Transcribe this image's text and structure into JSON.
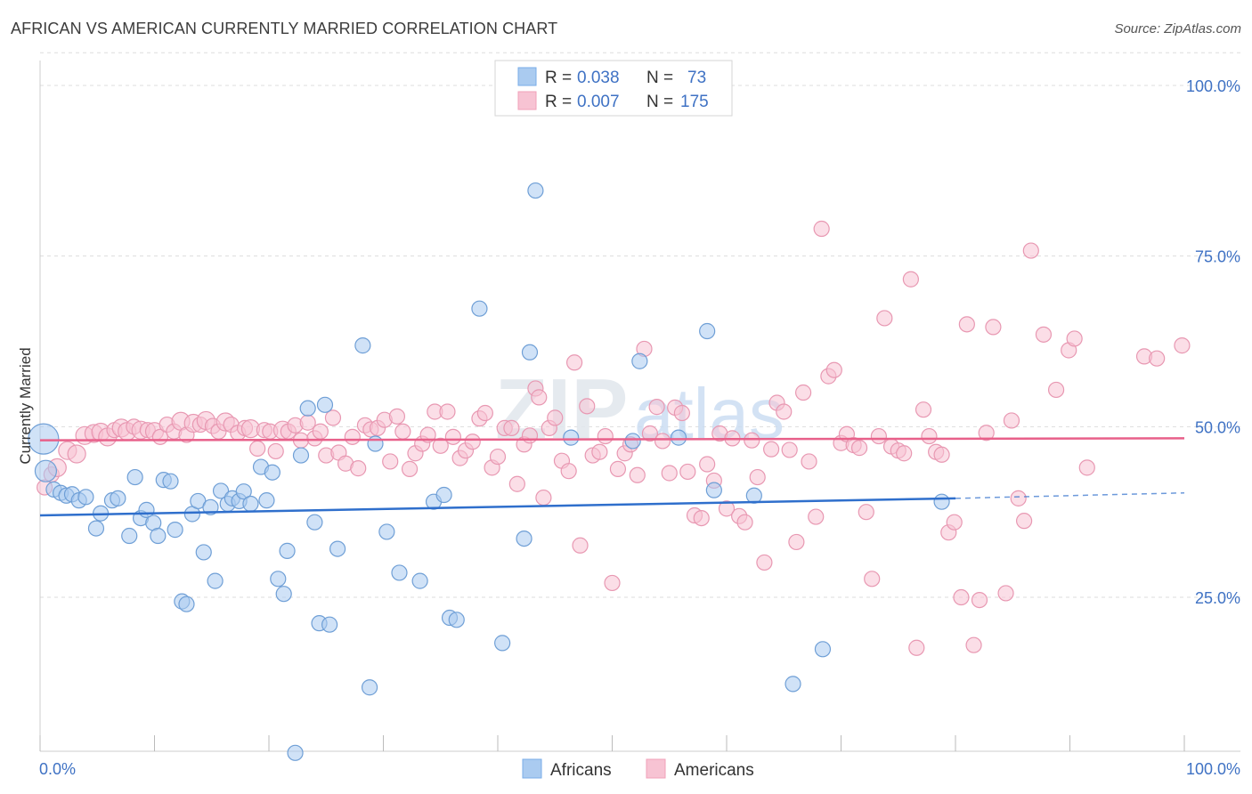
{
  "title": "AFRICAN VS AMERICAN CURRENTLY MARRIED CORRELATION CHART",
  "source": "Source: ZipAtlas.com",
  "watermark": {
    "zip": "ZIP",
    "atlas": "atlas"
  },
  "legend_top": [
    {
      "r_label": "R =",
      "r_value": "0.038",
      "n_label": "N =",
      "n_value": "73",
      "color": "#7aaee8"
    },
    {
      "r_label": "R =",
      "r_value": "0.007",
      "n_label": "N =",
      "n_value": "175",
      "color": "#f2a0ba"
    }
  ],
  "legend_bottom": [
    {
      "label": "Africans",
      "color": "#7aaee8"
    },
    {
      "label": "Americans",
      "color": "#f2a0ba"
    }
  ],
  "colors": {
    "blue_fill": "#aacbf0",
    "blue_stroke": "#6f9fd6",
    "blue_line": "#2f6fcc",
    "pink_fill": "#f7c3d3",
    "pink_stroke": "#e898b2",
    "pink_line": "#e8608a",
    "axis_text": "#3f72c4",
    "grid": "#dddddd"
  },
  "chart_data": {
    "type": "scatter",
    "title": "AFRICAN VS AMERICAN CURRENTLY MARRIED CORRELATION CHART",
    "xlabel": "",
    "ylabel": "Currently Married",
    "xlim": [
      0,
      100
    ],
    "ylim": [
      0,
      105
    ],
    "x_tick_labels": [
      "0.0%",
      "100.0%"
    ],
    "y_ticks": [
      25,
      50,
      75,
      100
    ],
    "y_tick_labels": [
      "25.0%",
      "50.0%",
      "75.0%",
      "100.0%"
    ],
    "grid": true,
    "series": [
      {
        "name": "Africans",
        "R": 0.038,
        "N": 73,
        "trend": {
          "x0": 0,
          "y0": 37.0,
          "x1": 80,
          "y1": 39.5,
          "dashed_to_x": 100,
          "dashed_to_y": 40.3
        },
        "points": [
          [
            0.3,
            48.2,
            5
          ],
          [
            0.5,
            43.5,
            3
          ],
          [
            1.2,
            40.8,
            1
          ],
          [
            1.8,
            40.3,
            1
          ],
          [
            2.3,
            39.9,
            1
          ],
          [
            2.8,
            40.1,
            1
          ],
          [
            3.4,
            39.2,
            1
          ],
          [
            4.0,
            39.7,
            1
          ],
          [
            4.9,
            35.1,
            1
          ],
          [
            5.3,
            37.3,
            1
          ],
          [
            6.3,
            39.2,
            1
          ],
          [
            6.8,
            39.5,
            1
          ],
          [
            7.8,
            34.0,
            1
          ],
          [
            8.3,
            42.6,
            1
          ],
          [
            8.8,
            36.6,
            1
          ],
          [
            9.3,
            37.8,
            1
          ],
          [
            9.9,
            35.9,
            1
          ],
          [
            10.3,
            34.0,
            1
          ],
          [
            10.8,
            42.2,
            1
          ],
          [
            11.4,
            42.0,
            1
          ],
          [
            11.8,
            34.9,
            1
          ],
          [
            12.4,
            24.4,
            1
          ],
          [
            12.8,
            24.0,
            1
          ],
          [
            13.3,
            37.2,
            1
          ],
          [
            13.8,
            39.1,
            1
          ],
          [
            14.3,
            31.6,
            1
          ],
          [
            14.9,
            38.2,
            1
          ],
          [
            15.3,
            27.4,
            1
          ],
          [
            15.8,
            40.6,
            1
          ],
          [
            16.4,
            38.7,
            1
          ],
          [
            16.8,
            39.5,
            1
          ],
          [
            17.4,
            39.1,
            1
          ],
          [
            17.8,
            40.5,
            1
          ],
          [
            18.4,
            38.7,
            1
          ],
          [
            19.3,
            44.1,
            1
          ],
          [
            19.8,
            39.2,
            1
          ],
          [
            20.3,
            43.3,
            1
          ],
          [
            20.8,
            27.7,
            1
          ],
          [
            21.3,
            25.5,
            1
          ],
          [
            21.6,
            31.8,
            1
          ],
          [
            22.3,
            2.2,
            1
          ],
          [
            22.8,
            45.8,
            1
          ],
          [
            23.4,
            52.7,
            1
          ],
          [
            24.0,
            36.0,
            1
          ],
          [
            24.4,
            21.2,
            1
          ],
          [
            24.9,
            53.2,
            1
          ],
          [
            25.3,
            21.0,
            1
          ],
          [
            26.0,
            32.1,
            1
          ],
          [
            28.2,
            61.9,
            1
          ],
          [
            28.8,
            11.8,
            1
          ],
          [
            29.3,
            47.5,
            1
          ],
          [
            30.3,
            34.6,
            1
          ],
          [
            31.4,
            28.6,
            1
          ],
          [
            33.2,
            27.4,
            1
          ],
          [
            34.4,
            39.0,
            1
          ],
          [
            35.3,
            40.0,
            1
          ],
          [
            35.8,
            22.0,
            1
          ],
          [
            36.4,
            21.7,
            1
          ],
          [
            38.4,
            67.3,
            1
          ],
          [
            40.4,
            18.3,
            1
          ],
          [
            42.3,
            33.6,
            1
          ],
          [
            42.8,
            60.9,
            1
          ],
          [
            43.3,
            84.6,
            1
          ],
          [
            46.4,
            48.4,
            1
          ],
          [
            51.8,
            47.9,
            1
          ],
          [
            55.8,
            48.4,
            1
          ],
          [
            52.4,
            59.6,
            1
          ],
          [
            58.3,
            64.0,
            1
          ],
          [
            58.9,
            40.7,
            1
          ],
          [
            62.4,
            39.9,
            1
          ],
          [
            65.8,
            12.3,
            1
          ],
          [
            68.4,
            17.4,
            1
          ],
          [
            78.8,
            39.0,
            1
          ]
        ]
      },
      {
        "name": "Americans",
        "R": 0.007,
        "N": 175,
        "trend": {
          "x0": 0,
          "y0": 48.0,
          "x1": 100,
          "y1": 48.3
        },
        "points": [
          [
            0.4,
            41.1,
            1
          ],
          [
            1.0,
            43.0,
            1
          ],
          [
            1.5,
            44.0,
            2
          ],
          [
            2.4,
            46.5,
            2
          ],
          [
            3.2,
            46.0,
            2
          ],
          [
            3.9,
            48.7,
            2
          ],
          [
            4.7,
            49.0,
            2
          ],
          [
            5.3,
            49.2,
            2
          ],
          [
            5.9,
            48.5,
            2
          ],
          [
            6.5,
            49.5,
            1
          ],
          [
            7.1,
            49.8,
            2
          ],
          [
            7.6,
            49.3,
            2
          ],
          [
            8.2,
            50.0,
            1
          ],
          [
            8.8,
            49.5,
            2
          ],
          [
            9.4,
            49.5,
            1
          ],
          [
            10.0,
            49.3,
            2
          ],
          [
            10.5,
            48.5,
            1
          ],
          [
            11.1,
            50.3,
            1
          ],
          [
            11.7,
            49.3,
            1
          ],
          [
            12.3,
            50.8,
            2
          ],
          [
            12.8,
            48.8,
            1
          ],
          [
            13.4,
            50.5,
            2
          ],
          [
            14.0,
            50.3,
            1
          ],
          [
            14.5,
            50.9,
            2
          ],
          [
            15.1,
            50.1,
            1
          ],
          [
            15.6,
            49.3,
            1
          ],
          [
            16.2,
            50.7,
            2
          ],
          [
            16.7,
            50.3,
            1
          ],
          [
            17.3,
            49.1,
            1
          ],
          [
            17.9,
            49.8,
            1
          ],
          [
            18.4,
            49.7,
            2
          ],
          [
            19.0,
            46.8,
            1
          ],
          [
            19.6,
            49.5,
            1
          ],
          [
            20.1,
            49.3,
            1
          ],
          [
            20.6,
            46.4,
            1
          ],
          [
            21.2,
            49.5,
            2
          ],
          [
            21.7,
            49.3,
            1
          ],
          [
            22.3,
            50.2,
            1
          ],
          [
            22.8,
            48.0,
            1
          ],
          [
            23.4,
            50.6,
            1
          ],
          [
            24.0,
            48.3,
            1
          ],
          [
            24.5,
            49.3,
            1
          ],
          [
            25.0,
            45.8,
            1
          ],
          [
            25.6,
            51.3,
            1
          ],
          [
            26.1,
            46.2,
            1
          ],
          [
            26.7,
            44.6,
            1
          ],
          [
            27.3,
            48.5,
            1
          ],
          [
            27.8,
            43.9,
            1
          ],
          [
            28.4,
            50.2,
            1
          ],
          [
            28.9,
            49.6,
            1
          ],
          [
            29.5,
            49.8,
            1
          ],
          [
            30.1,
            51.0,
            1
          ],
          [
            30.6,
            44.9,
            1
          ],
          [
            31.2,
            51.5,
            1
          ],
          [
            31.7,
            49.3,
            1
          ],
          [
            32.3,
            43.8,
            1
          ],
          [
            32.8,
            46.1,
            1
          ],
          [
            33.4,
            47.5,
            1
          ],
          [
            33.9,
            48.8,
            1
          ],
          [
            34.5,
            52.2,
            1
          ],
          [
            35.0,
            47.2,
            1
          ],
          [
            35.6,
            52.2,
            1
          ],
          [
            36.1,
            48.5,
            1
          ],
          [
            36.7,
            45.4,
            1
          ],
          [
            37.2,
            46.5,
            1
          ],
          [
            37.8,
            47.8,
            1
          ],
          [
            38.4,
            51.2,
            1
          ],
          [
            38.9,
            52.0,
            1
          ],
          [
            39.5,
            44.0,
            1
          ],
          [
            40.0,
            45.6,
            1
          ],
          [
            40.6,
            49.8,
            1
          ],
          [
            41.2,
            49.8,
            1
          ],
          [
            41.7,
            41.6,
            1
          ],
          [
            42.3,
            47.4,
            1
          ],
          [
            42.8,
            48.7,
            1
          ],
          [
            43.3,
            55.6,
            1
          ],
          [
            43.6,
            54.3,
            1
          ],
          [
            44.0,
            39.6,
            1
          ],
          [
            44.5,
            49.8,
            1
          ],
          [
            45.0,
            51.3,
            1
          ],
          [
            45.6,
            45.0,
            1
          ],
          [
            46.2,
            43.5,
            1
          ],
          [
            46.7,
            59.4,
            1
          ],
          [
            47.2,
            32.6,
            1
          ],
          [
            47.8,
            53.0,
            1
          ],
          [
            48.3,
            45.8,
            1
          ],
          [
            48.9,
            46.3,
            1
          ],
          [
            49.4,
            48.6,
            1
          ],
          [
            50.0,
            27.1,
            1
          ],
          [
            50.5,
            43.8,
            1
          ],
          [
            51.1,
            46.1,
            1
          ],
          [
            51.6,
            47.4,
            1
          ],
          [
            52.2,
            42.9,
            1
          ],
          [
            52.8,
            61.4,
            1
          ],
          [
            53.3,
            49.0,
            1
          ],
          [
            53.9,
            52.9,
            1
          ],
          [
            54.4,
            47.9,
            1
          ],
          [
            55.0,
            43.2,
            1
          ],
          [
            55.5,
            52.8,
            1
          ],
          [
            56.1,
            52.0,
            1
          ],
          [
            56.6,
            43.4,
            1
          ],
          [
            57.2,
            37.0,
            1
          ],
          [
            57.8,
            36.6,
            1
          ],
          [
            58.3,
            44.5,
            1
          ],
          [
            58.9,
            42.1,
            1
          ],
          [
            59.4,
            49.0,
            1
          ],
          [
            60.0,
            38.0,
            1
          ],
          [
            60.5,
            48.3,
            1
          ],
          [
            61.1,
            36.9,
            1
          ],
          [
            61.6,
            36.0,
            1
          ],
          [
            62.2,
            48.0,
            1
          ],
          [
            62.7,
            42.6,
            1
          ],
          [
            63.3,
            30.1,
            1
          ],
          [
            63.9,
            46.7,
            1
          ],
          [
            64.4,
            53.5,
            1
          ],
          [
            65.0,
            52.2,
            1
          ],
          [
            65.5,
            46.6,
            1
          ],
          [
            66.1,
            33.1,
            1
          ],
          [
            66.7,
            55.0,
            1
          ],
          [
            67.2,
            44.9,
            1
          ],
          [
            67.8,
            36.8,
            1
          ],
          [
            68.3,
            79.0,
            1
          ],
          [
            68.9,
            57.4,
            1
          ],
          [
            69.4,
            58.3,
            1
          ],
          [
            70.0,
            47.6,
            1
          ],
          [
            70.5,
            48.9,
            1
          ],
          [
            71.1,
            47.3,
            1
          ],
          [
            71.6,
            46.9,
            1
          ],
          [
            72.2,
            37.5,
            1
          ],
          [
            72.7,
            27.7,
            1
          ],
          [
            73.3,
            48.6,
            1
          ],
          [
            73.8,
            65.9,
            1
          ],
          [
            74.4,
            47.1,
            1
          ],
          [
            75.0,
            46.5,
            1
          ],
          [
            75.5,
            46.1,
            1
          ],
          [
            76.1,
            71.6,
            1
          ],
          [
            76.6,
            17.6,
            1
          ],
          [
            77.2,
            52.5,
            1
          ],
          [
            77.7,
            48.6,
            1
          ],
          [
            78.3,
            46.3,
            1
          ],
          [
            78.8,
            45.9,
            1
          ],
          [
            79.4,
            34.5,
            1
          ],
          [
            79.9,
            36.0,
            1
          ],
          [
            80.5,
            25.0,
            1
          ],
          [
            81.0,
            65.0,
            1
          ],
          [
            81.6,
            18.0,
            1
          ],
          [
            82.1,
            24.6,
            1
          ],
          [
            82.7,
            49.1,
            1
          ],
          [
            83.3,
            64.6,
            1
          ],
          [
            84.4,
            25.6,
            1
          ],
          [
            84.9,
            50.9,
            1
          ],
          [
            85.5,
            39.5,
            1
          ],
          [
            86.0,
            36.2,
            1
          ],
          [
            86.6,
            75.8,
            1
          ],
          [
            87.7,
            63.5,
            1
          ],
          [
            88.8,
            55.4,
            1
          ],
          [
            89.9,
            61.2,
            1
          ],
          [
            90.4,
            62.9,
            1
          ],
          [
            91.5,
            44.0,
            1
          ],
          [
            96.5,
            60.3,
            1
          ],
          [
            97.6,
            60.0,
            1
          ],
          [
            99.8,
            61.9,
            1
          ]
        ]
      }
    ]
  }
}
